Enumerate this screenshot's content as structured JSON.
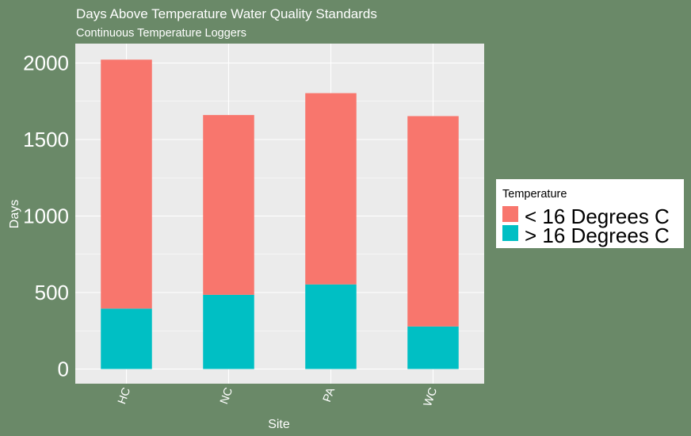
{
  "chart_data": {
    "type": "bar",
    "stacked": true,
    "title": "Days Above Temperature Water Quality Standards",
    "subtitle": "Continuous Temperature Loggers",
    "xlabel": "Site",
    "ylabel": "Days",
    "categories": [
      "HC",
      "NC",
      "PA",
      "WC"
    ],
    "series": [
      {
        "name": "> 16 Degrees C",
        "color": "#00bfc4",
        "values": [
          395,
          485,
          553,
          278
        ]
      },
      {
        "name": "< 16 Degrees C",
        "color": "#f8766d",
        "values": [
          1627,
          1175,
          1250,
          1375
        ]
      }
    ],
    "ylim": [
      -100,
      2100
    ],
    "yticks": [
      0,
      500,
      1000,
      1500,
      2000
    ],
    "grid": true,
    "legend": {
      "title": "Temperature",
      "position": "right",
      "entries": [
        {
          "label": "< 16 Degrees C",
          "color": "#f8766d"
        },
        {
          "label": "> 16 Degrees C",
          "color": "#00bfc4"
        }
      ]
    },
    "colors": {
      "background": "#6a8968",
      "panel": "#ebebeb",
      "grid": "#ffffff"
    }
  }
}
